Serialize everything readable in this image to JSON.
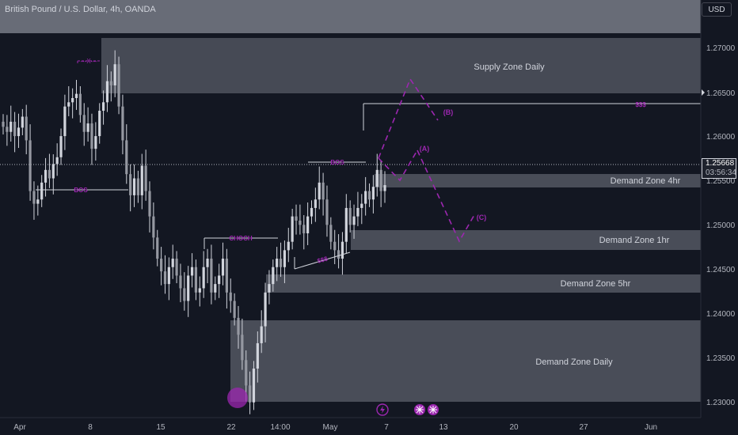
{
  "header": {
    "title": "British Pound / U.S. Dollar, 4h, OANDA",
    "currency_button": "USD"
  },
  "price_axis": {
    "current_price": "1.25668",
    "countdown": "03:56:34",
    "ticks": [
      "1.27000",
      "1.26500",
      "1.26000",
      "1.25500",
      "1.25000",
      "1.24500",
      "1.24000",
      "1.23500",
      "1.23000"
    ]
  },
  "time_axis": {
    "ticks": [
      "Apr",
      "8",
      "15",
      "22",
      "14:00",
      "May",
      "7",
      "13",
      "20",
      "27",
      "Jun"
    ]
  },
  "colors": {
    "background": "#131722",
    "candle": "#d1d4dc",
    "zone": "#50535e",
    "annotation": "#9c27b0",
    "line": "#d1d4dc",
    "text": "#d1d4dc"
  },
  "chart_data": {
    "type": "candlestick",
    "symbol": "GBPUSD",
    "interval": "4h",
    "ylim": [
      1.2292,
      1.2786
    ],
    "y_ticks": [
      1.27,
      1.265,
      1.26,
      1.255,
      1.25,
      1.245,
      1.24,
      1.235,
      1.23
    ],
    "close_series": [
      1.2636,
      1.263,
      1.2642,
      1.2625,
      1.2635,
      1.2648,
      1.262,
      1.256,
      1.2545,
      1.255,
      1.257,
      1.2585,
      1.2575,
      1.2592,
      1.26,
      1.2625,
      1.266,
      1.2665,
      1.267,
      1.2675,
      1.265,
      1.263,
      1.264,
      1.261,
      1.2625,
      1.2655,
      1.2665,
      1.269,
      1.2685,
      1.271,
      1.266,
      1.262,
      1.258,
      1.2555,
      1.2575,
      1.2555,
      1.259,
      1.256,
      1.253,
      1.2505,
      1.248,
      1.2465,
      1.245,
      1.247,
      1.248,
      1.246,
      1.2445,
      1.243,
      1.246,
      1.247,
      1.244,
      1.2445,
      1.247,
      1.248,
      1.244,
      1.245,
      1.246,
      1.248,
      1.244,
      1.243,
      1.241,
      1.239,
      1.236,
      1.233,
      1.231,
      1.235,
      1.238,
      1.24,
      1.244,
      1.245,
      1.247,
      1.248,
      1.247,
      1.249,
      1.25,
      1.253,
      1.2525,
      1.252,
      1.251,
      1.253,
      1.254,
      1.255,
      1.257,
      1.255,
      1.252,
      1.25,
      1.249,
      1.248,
      1.25,
      1.254,
      1.252,
      1.253,
      1.254,
      1.2545,
      1.256,
      1.255,
      1.2565,
      1.2585,
      1.256,
      1.2567
    ],
    "zones": [
      {
        "label": "Supply Zone Daily",
        "y_range": [
          1.265,
          1.2706
        ]
      },
      {
        "label": "Demand Zone 4hr",
        "y_range": [
          1.2544,
          1.2559
        ]
      },
      {
        "label": "Demand Zone 1hr",
        "y_range": [
          1.2474,
          1.2495
        ]
      },
      {
        "label": "Demand Zone 5hr",
        "y_range": [
          1.2423,
          1.2445
        ]
      },
      {
        "label": "Demand Zone Daily",
        "y_range": [
          1.23,
          1.2392
        ]
      }
    ],
    "annotations": [
      "BOS",
      "CHOCH",
      "BOS",
      "$$$",
      "$$$",
      "(A)",
      "(B)",
      "(C)",
      "---X---"
    ]
  }
}
